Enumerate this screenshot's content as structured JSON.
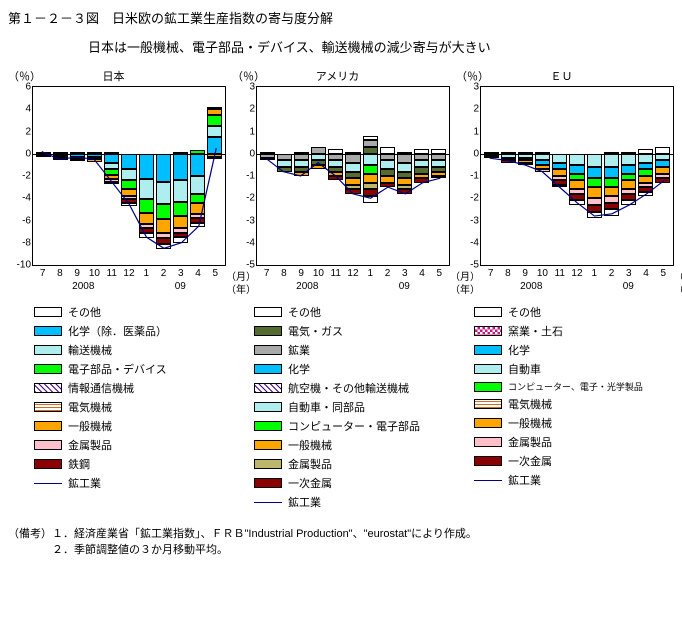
{
  "title": "第１－２－３図　日米欧の鉱工業生産指数の寄与度分解",
  "subtitle": "日本は一般機械、電子部品・デバイス、輸送機械の減少寄与が大きい",
  "months": [
    "7",
    "8",
    "9",
    "10",
    "11",
    "12",
    "1",
    "2",
    "3",
    "4",
    "5"
  ],
  "month_unit": "（月）",
  "year_labels": [
    "2008",
    "09"
  ],
  "year_unit": "（年）",
  "y_unit": "（％）",
  "charts": [
    {
      "name": "日本",
      "ylim": [
        -10,
        6
      ],
      "yticks": [
        6,
        4,
        2,
        0,
        -2,
        -4,
        -6,
        -8,
        -10
      ],
      "line": [
        0.2,
        -0.5,
        -0.3,
        -0.5,
        -2.5,
        -4.5,
        -7.5,
        -8.5,
        -8.0,
        -6.5,
        0.5
      ],
      "bars": [
        {
          "pos": 0.2,
          "neg": [
            [
              "#8b0000",
              -0.1
            ],
            [
              "#ffa500",
              -0.1
            ]
          ]
        },
        {
          "pos": 0.1,
          "neg": [
            [
              "#00bfff",
              -0.2
            ],
            [
              "#ffa500",
              -0.2
            ],
            [
              "#8b0000",
              -0.1
            ]
          ]
        },
        {
          "pos": 0.2,
          "neg": [
            [
              "#00bfff",
              -0.3
            ],
            [
              "#00ff00",
              -0.2
            ],
            [
              "#ffa500",
              -0.1
            ]
          ]
        },
        {
          "pos": 0.1,
          "neg": [
            [
              "#00bfff",
              -0.3
            ],
            [
              "#00ff00",
              -0.2
            ],
            [
              "#ffa500",
              -0.2
            ]
          ]
        },
        {
          "pos": 0.1,
          "neg": [
            [
              "#00bfff",
              -0.8
            ],
            [
              "#afeeee",
              -0.6
            ],
            [
              "#00ff00",
              -0.5
            ],
            [
              "#ffa500",
              -0.4
            ],
            [
              "#ffc0cb",
              -0.2
            ],
            [
              "#8b0000",
              -0.2
            ]
          ]
        },
        {
          "pos": 0.0,
          "neg": [
            [
              "#00bfff",
              -1.4
            ],
            [
              "#afeeee",
              -1.0
            ],
            [
              "#00ff00",
              -0.8
            ],
            [
              "#ffa500",
              -0.6
            ],
            [
              "#ffc0cb",
              -0.3
            ],
            [
              "#8b0000",
              -0.3
            ],
            [
              "#ffffff",
              -0.3
            ]
          ]
        },
        {
          "pos": 0.0,
          "neg": [
            [
              "#00bfff",
              -2.3
            ],
            [
              "#afeeee",
              -1.8
            ],
            [
              "#00ff00",
              -1.2
            ],
            [
              "#ffa500",
              -1.0
            ],
            [
              "#ffc0cb",
              -0.4
            ],
            [
              "#8b0000",
              -0.4
            ],
            [
              "#ffffff",
              -0.5
            ]
          ]
        },
        {
          "pos": 0.0,
          "neg": [
            [
              "#00bfff",
              -2.5
            ],
            [
              "#afeeee",
              -2.0
            ],
            [
              "#00ff00",
              -1.4
            ],
            [
              "#ffa500",
              -1.2
            ],
            [
              "#ffc0cb",
              -0.5
            ],
            [
              "#8b0000",
              -0.5
            ],
            [
              "#ffffff",
              -0.5
            ]
          ]
        },
        {
          "pos": 0.1,
          "neg": [
            [
              "#00bfff",
              -2.4
            ],
            [
              "#afeeee",
              -1.9
            ],
            [
              "#00ff00",
              -1.3
            ],
            [
              "#ffa500",
              -1.1
            ],
            [
              "#ffc0cb",
              -0.4
            ],
            [
              "#8b0000",
              -0.4
            ],
            [
              "#ffffff",
              -0.5
            ]
          ]
        },
        {
          "pos": 0.3,
          "pos_segs": [
            [
              "#00ff00",
              0.3
            ]
          ],
          "neg": [
            [
              "#00bfff",
              -2.0
            ],
            [
              "#afeeee",
              -1.6
            ],
            [
              "#00ff00",
              -0.8
            ],
            [
              "#ffa500",
              -1.0
            ],
            [
              "#ffc0cb",
              -0.4
            ],
            [
              "#8b0000",
              -0.4
            ],
            [
              "#ffffff",
              -0.4
            ]
          ]
        },
        {
          "pos": 4.2,
          "pos_segs": [
            [
              "#00bfff",
              1.5
            ],
            [
              "#afeeee",
              1.0
            ],
            [
              "#00ff00",
              1.0
            ],
            [
              "#ffa500",
              0.5
            ],
            [
              "#ffffff",
              0.2
            ]
          ],
          "neg": [
            [
              "#ffa500",
              -0.3
            ],
            [
              "#8b0000",
              -0.2
            ]
          ]
        }
      ]
    },
    {
      "name": "アメリカ",
      "ylim": [
        -5,
        3
      ],
      "yticks": [
        3,
        2,
        1,
        0,
        -1,
        -2,
        -3,
        -4,
        -5
      ],
      "line": [
        -0.2,
        -0.8,
        -1.0,
        -0.4,
        -1.0,
        -1.8,
        -2.0,
        -1.5,
        -1.8,
        -1.3,
        -1.1
      ],
      "bars": [
        {
          "pos": 0.1,
          "neg": [
            [
              "#a9a9a9",
              -0.2
            ],
            [
              "#afeeee",
              -0.1
            ]
          ]
        },
        {
          "pos": 0.0,
          "neg": [
            [
              "#a9a9a9",
              -0.3
            ],
            [
              "#afeeee",
              -0.3
            ],
            [
              "#556b2f",
              -0.2
            ]
          ]
        },
        {
          "pos": 0.1,
          "neg": [
            [
              "#a9a9a9",
              -0.3
            ],
            [
              "#afeeee",
              -0.3
            ],
            [
              "#556b2f",
              -0.2
            ],
            [
              "#ffa500",
              -0.2
            ]
          ]
        },
        {
          "pos": 0.3,
          "pos_segs": [
            [
              "#a9a9a9",
              0.3
            ]
          ],
          "neg": [
            [
              "#afeeee",
              -0.3
            ],
            [
              "#556b2f",
              -0.2
            ],
            [
              "#ffa500",
              -0.2
            ]
          ]
        },
        {
          "pos": 0.2,
          "neg": [
            [
              "#a9a9a9",
              -0.3
            ],
            [
              "#afeeee",
              -0.3
            ],
            [
              "#556b2f",
              -0.2
            ],
            [
              "#ffa500",
              -0.2
            ],
            [
              "#8b0000",
              -0.2
            ]
          ]
        },
        {
          "pos": 0.1,
          "neg": [
            [
              "#a9a9a9",
              -0.4
            ],
            [
              "#afeeee",
              -0.4
            ],
            [
              "#556b2f",
              -0.3
            ],
            [
              "#ffa500",
              -0.3
            ],
            [
              "#bdb76b",
              -0.2
            ],
            [
              "#8b0000",
              -0.2
            ]
          ]
        },
        {
          "pos": 0.8,
          "pos_segs": [
            [
              "#556b2f",
              0.3
            ],
            [
              "#a9a9a9",
              0.3
            ],
            [
              "#ffffff",
              0.2
            ]
          ],
          "neg": [
            [
              "#afeeee",
              -0.5
            ],
            [
              "#00ff00",
              -0.4
            ],
            [
              "#ffa500",
              -0.4
            ],
            [
              "#bdb76b",
              -0.3
            ],
            [
              "#8b0000",
              -0.3
            ],
            [
              "#ffffff",
              -0.3
            ]
          ]
        },
        {
          "pos": 0.3,
          "neg": [
            [
              "#a9a9a9",
              -0.3
            ],
            [
              "#afeeee",
              -0.4
            ],
            [
              "#556b2f",
              -0.3
            ],
            [
              "#ffa500",
              -0.3
            ],
            [
              "#8b0000",
              -0.2
            ]
          ]
        },
        {
          "pos": 0.1,
          "neg": [
            [
              "#a9a9a9",
              -0.4
            ],
            [
              "#afeeee",
              -0.4
            ],
            [
              "#556b2f",
              -0.3
            ],
            [
              "#ffa500",
              -0.3
            ],
            [
              "#bdb76b",
              -0.2
            ],
            [
              "#8b0000",
              -0.2
            ]
          ]
        },
        {
          "pos": 0.2,
          "neg": [
            [
              "#a9a9a9",
              -0.3
            ],
            [
              "#afeeee",
              -0.3
            ],
            [
              "#556b2f",
              -0.3
            ],
            [
              "#ffa500",
              -0.2
            ],
            [
              "#8b0000",
              -0.2
            ]
          ]
        },
        {
          "pos": 0.2,
          "neg": [
            [
              "#a9a9a9",
              -0.3
            ],
            [
              "#afeeee",
              -0.3
            ],
            [
              "#556b2f",
              -0.2
            ],
            [
              "#ffa500",
              -0.2
            ],
            [
              "#8b0000",
              -0.1
            ]
          ]
        }
      ]
    },
    {
      "name": "ＥＵ",
      "ylim": [
        -5,
        3
      ],
      "yticks": [
        3,
        2,
        1,
        0,
        -1,
        -2,
        -3,
        -4,
        -5
      ],
      "line": [
        -0.2,
        -0.3,
        -0.5,
        -0.8,
        -1.5,
        -2.2,
        -2.8,
        -2.7,
        -2.3,
        -1.8,
        -1.2
      ],
      "bars": [
        {
          "pos": 0.1,
          "neg": [
            [
              "#afeeee",
              -0.1
            ],
            [
              "#ffa500",
              -0.1
            ]
          ]
        },
        {
          "pos": 0.1,
          "neg": [
            [
              "#afeeee",
              -0.2
            ],
            [
              "#ffa500",
              -0.1
            ],
            [
              "#8b0000",
              -0.1
            ]
          ]
        },
        {
          "pos": 0.1,
          "neg": [
            [
              "#afeeee",
              -0.2
            ],
            [
              "#00bfff",
              -0.1
            ],
            [
              "#ffa500",
              -0.1
            ],
            [
              "#8b0000",
              -0.1
            ]
          ]
        },
        {
          "pos": 0.1,
          "neg": [
            [
              "#afeeee",
              -0.3
            ],
            [
              "#00bfff",
              -0.2
            ],
            [
              "#ffa500",
              -0.2
            ],
            [
              "#ffc0cb",
              -0.1
            ]
          ]
        },
        {
          "pos": 0.0,
          "neg": [
            [
              "#afeeee",
              -0.4
            ],
            [
              "#00bfff",
              -0.3
            ],
            [
              "#ffa500",
              -0.3
            ],
            [
              "#ffc0cb",
              -0.2
            ],
            [
              "#8b0000",
              -0.2
            ],
            [
              "#ffffff",
              -0.1
            ]
          ]
        },
        {
          "pos": 0.0,
          "neg": [
            [
              "#afeeee",
              -0.5
            ],
            [
              "#00bfff",
              -0.4
            ],
            [
              "#00ff00",
              -0.3
            ],
            [
              "#ffa500",
              -0.4
            ],
            [
              "#ffc0cb",
              -0.2
            ],
            [
              "#8b0000",
              -0.3
            ],
            [
              "#ffffff",
              -0.2
            ]
          ]
        },
        {
          "pos": 0.0,
          "neg": [
            [
              "#afeeee",
              -0.6
            ],
            [
              "#00bfff",
              -0.5
            ],
            [
              "#00ff00",
              -0.4
            ],
            [
              "#ffa500",
              -0.5
            ],
            [
              "#ffc0cb",
              -0.3
            ],
            [
              "#8b0000",
              -0.3
            ],
            [
              "#ffffff",
              -0.3
            ]
          ]
        },
        {
          "pos": 0.1,
          "neg": [
            [
              "#afeeee",
              -0.6
            ],
            [
              "#00bfff",
              -0.5
            ],
            [
              "#00ff00",
              -0.4
            ],
            [
              "#ffa500",
              -0.4
            ],
            [
              "#ffc0cb",
              -0.3
            ],
            [
              "#8b0000",
              -0.3
            ],
            [
              "#ffffff",
              -0.3
            ]
          ]
        },
        {
          "pos": 0.1,
          "neg": [
            [
              "#afeeee",
              -0.5
            ],
            [
              "#00bfff",
              -0.4
            ],
            [
              "#00ff00",
              -0.3
            ],
            [
              "#ffa500",
              -0.4
            ],
            [
              "#ffc0cb",
              -0.2
            ],
            [
              "#8b0000",
              -0.3
            ],
            [
              "#ffffff",
              -0.2
            ]
          ]
        },
        {
          "pos": 0.2,
          "neg": [
            [
              "#afeeee",
              -0.4
            ],
            [
              "#00bfff",
              -0.3
            ],
            [
              "#00ff00",
              -0.3
            ],
            [
              "#ffa500",
              -0.3
            ],
            [
              "#ffc0cb",
              -0.2
            ],
            [
              "#8b0000",
              -0.2
            ],
            [
              "#ffffff",
              -0.2
            ]
          ]
        },
        {
          "pos": 0.3,
          "neg": [
            [
              "#afeeee",
              -0.3
            ],
            [
              "#00bfff",
              -0.3
            ],
            [
              "#ffa500",
              -0.3
            ],
            [
              "#ffc0cb",
              -0.2
            ],
            [
              "#8b0000",
              -0.2
            ]
          ]
        }
      ]
    }
  ],
  "legends": [
    [
      {
        "label": "その他",
        "c": "#ffffff"
      },
      {
        "label": "化学（除．医薬品）",
        "c": "#00bfff"
      },
      {
        "label": "輸送機械",
        "c": "#afeeee"
      },
      {
        "label": "電子部品・デバイス",
        "c": "#00ff00"
      },
      {
        "label": "情報通信機械",
        "pat": "pat-hatch"
      },
      {
        "label": "電気機械",
        "pat": "pat-stripe"
      },
      {
        "label": "一般機械",
        "c": "#ffa500"
      },
      {
        "label": "金属製品",
        "c": "#ffc0cb"
      },
      {
        "label": "鉄鋼",
        "c": "#8b0000"
      },
      {
        "label": "鉱工業",
        "line": true
      }
    ],
    [
      {
        "label": "その他",
        "c": "#ffffff"
      },
      {
        "label": "電気・ガス",
        "c": "#556b2f"
      },
      {
        "label": "鉱業",
        "c": "#a9a9a9"
      },
      {
        "label": "化学",
        "c": "#00bfff"
      },
      {
        "label": "航空機・その他輸送機械",
        "pat": "pat-hatch"
      },
      {
        "label": "自動車・同部品",
        "c": "#afeeee"
      },
      {
        "label": "コンピューター・電子部品",
        "c": "#00ff00"
      },
      {
        "label": "一般機械",
        "c": "#ffa500"
      },
      {
        "label": "金属製品",
        "c": "#bdb76b"
      },
      {
        "label": "一次金属",
        "c": "#8b0000"
      },
      {
        "label": "鉱工業",
        "line": true
      }
    ],
    [
      {
        "label": "その他",
        "c": "#ffffff"
      },
      {
        "label": "窯業・土石",
        "pat": "pat-checker"
      },
      {
        "label": "化学",
        "c": "#00bfff"
      },
      {
        "label": "自動車",
        "c": "#afeeee"
      },
      {
        "label": "コンピューター、電子・光学製品",
        "c": "#00ff00",
        "small": true
      },
      {
        "label": "電気機械",
        "pat": "pat-stripe"
      },
      {
        "label": "一般機械",
        "c": "#ffa500"
      },
      {
        "label": "金属製品",
        "c": "#ffc0cb"
      },
      {
        "label": "一次金属",
        "c": "#8b0000"
      },
      {
        "label": "鉱工業",
        "line": true
      }
    ]
  ],
  "notes": [
    "（備考）１．経済産業省「鉱工業指数」、ＦＲＢ\"Industrial Production\"、\"eurostat\"により作成。",
    "　　　　２．季節調整値の３か月移動平均。"
  ]
}
